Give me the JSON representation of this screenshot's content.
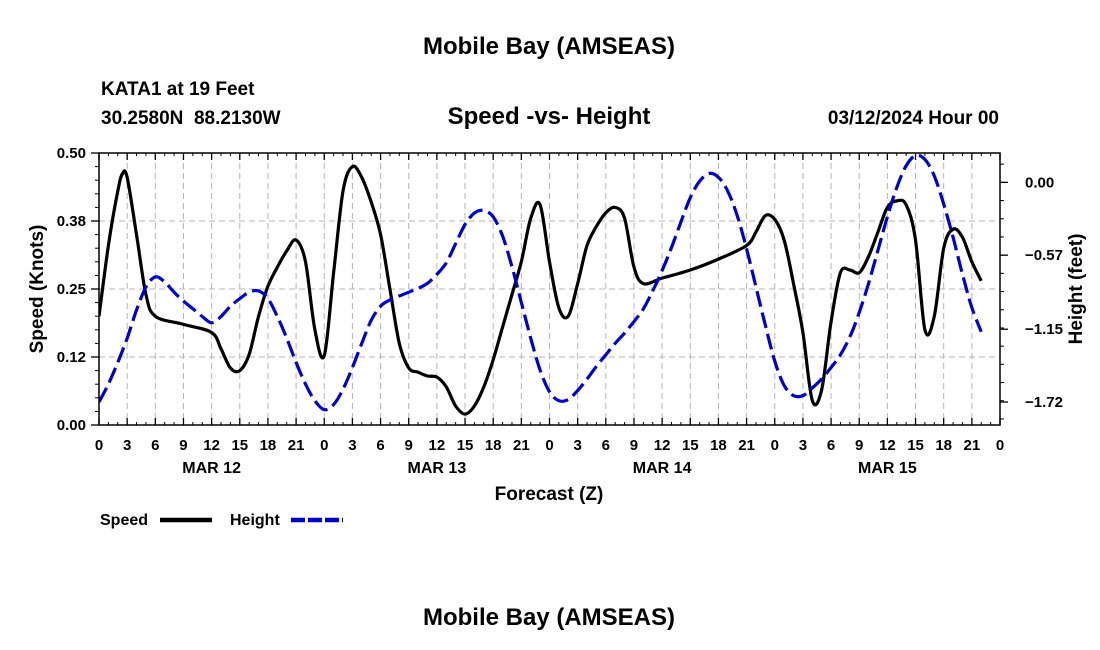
{
  "page": {
    "title": "Mobile Bay (AMSEAS)",
    "footer_title": "Mobile Bay (AMSEAS)",
    "station": "KATA1 at 19 Feet",
    "coords": "30.2580N  88.2130W",
    "timestamp": "03/12/2024 Hour 00"
  },
  "legend": {
    "speed_label": "Speed",
    "height_label": "Height"
  },
  "colors": {
    "speed": "#000000",
    "height": "#0000cc",
    "grid": "#b4b4b4"
  },
  "chart_data": {
    "type": "line",
    "title": "Speed -vs- Height",
    "xlabel": "Forecast (Z)",
    "ylabel": "Speed (Knots)",
    "y2label": "Height (feet)",
    "xlim": [
      0,
      96
    ],
    "ylim": [
      0,
      0.5
    ],
    "y2lim": [
      -1.9,
      0.23
    ],
    "grid": true,
    "legend_position": "bottom-left",
    "x_ticks": [
      0,
      3,
      6,
      9,
      12,
      15,
      18,
      21,
      24,
      27,
      30,
      33,
      36,
      39,
      42,
      45,
      48,
      51,
      54,
      57,
      60,
      63,
      66,
      69,
      72,
      75,
      78,
      81,
      84,
      87,
      90,
      93,
      96
    ],
    "x_tick_labels": [
      "0",
      "3",
      "6",
      "9",
      "12",
      "15",
      "18",
      "21",
      "0",
      "3",
      "6",
      "9",
      "12",
      "15",
      "18",
      "21",
      "0",
      "3",
      "6",
      "9",
      "12",
      "15",
      "18",
      "21",
      "0",
      "3",
      "6",
      "9",
      "12",
      "15",
      "18",
      "21",
      "0"
    ],
    "date_labels": [
      {
        "x": 12,
        "label": "MAR 12"
      },
      {
        "x": 36,
        "label": "MAR 13"
      },
      {
        "x": 60,
        "label": "MAR 14"
      },
      {
        "x": 84,
        "label": "MAR 15"
      }
    ],
    "y_ticks": [
      0,
      0.125,
      0.25,
      0.375,
      0.5
    ],
    "y_tick_labels": [
      "0.00",
      "0.12",
      "0.25",
      "0.38",
      "0.50"
    ],
    "y2_ticks": [
      0.0,
      -0.57,
      -1.15,
      -1.72
    ],
    "y2_tick_labels": [
      "0.00",
      "−0.57",
      "−1.15",
      "−1.72"
    ],
    "series": [
      {
        "name": "Speed",
        "axis": "left",
        "style": "solid",
        "points": [
          [
            0,
            0.2
          ],
          [
            1,
            0.33
          ],
          [
            2,
            0.43
          ],
          [
            2.5,
            0.462
          ],
          [
            3,
            0.455
          ],
          [
            4,
            0.35
          ],
          [
            5,
            0.24
          ],
          [
            6,
            0.2
          ],
          [
            9,
            0.185
          ],
          [
            12,
            0.17
          ],
          [
            13,
            0.14
          ],
          [
            14,
            0.105
          ],
          [
            15,
            0.1
          ],
          [
            16,
            0.13
          ],
          [
            17,
            0.2
          ],
          [
            18,
            0.255
          ],
          [
            19,
            0.29
          ],
          [
            20,
            0.32
          ],
          [
            21,
            0.34
          ],
          [
            22,
            0.3
          ],
          [
            23,
            0.175
          ],
          [
            24,
            0.128
          ],
          [
            25,
            0.28
          ],
          [
            26,
            0.43
          ],
          [
            27,
            0.475
          ],
          [
            28,
            0.455
          ],
          [
            29,
            0.41
          ],
          [
            30,
            0.35
          ],
          [
            31,
            0.25
          ],
          [
            32,
            0.15
          ],
          [
            33,
            0.105
          ],
          [
            34,
            0.097
          ],
          [
            35,
            0.09
          ],
          [
            36,
            0.088
          ],
          [
            37,
            0.07
          ],
          [
            38,
            0.035
          ],
          [
            39,
            0.02
          ],
          [
            40,
            0.035
          ],
          [
            41,
            0.07
          ],
          [
            42,
            0.12
          ],
          [
            43,
            0.18
          ],
          [
            44,
            0.24
          ],
          [
            45,
            0.3
          ],
          [
            46,
            0.38
          ],
          [
            47,
            0.405
          ],
          [
            48,
            0.3
          ],
          [
            49,
            0.215
          ],
          [
            50,
            0.2
          ],
          [
            51,
            0.26
          ],
          [
            52,
            0.33
          ],
          [
            53,
            0.365
          ],
          [
            54,
            0.39
          ],
          [
            55,
            0.4
          ],
          [
            56,
            0.38
          ],
          [
            57,
            0.29
          ],
          [
            58,
            0.26
          ],
          [
            60,
            0.27
          ],
          [
            63,
            0.285
          ],
          [
            66,
            0.305
          ],
          [
            69,
            0.33
          ],
          [
            70,
            0.355
          ],
          [
            71,
            0.385
          ],
          [
            72,
            0.378
          ],
          [
            73,
            0.34
          ],
          [
            74,
            0.26
          ],
          [
            75,
            0.17
          ],
          [
            76,
            0.045
          ],
          [
            77,
            0.065
          ],
          [
            78,
            0.19
          ],
          [
            79,
            0.28
          ],
          [
            80,
            0.285
          ],
          [
            81,
            0.28
          ],
          [
            82,
            0.31
          ],
          [
            83,
            0.355
          ],
          [
            84,
            0.4
          ],
          [
            85,
            0.412
          ],
          [
            86,
            0.405
          ],
          [
            87,
            0.34
          ],
          [
            88,
            0.175
          ],
          [
            89,
            0.2
          ],
          [
            90,
            0.325
          ],
          [
            91,
            0.36
          ],
          [
            92,
            0.345
          ],
          [
            93,
            0.3
          ],
          [
            94,
            0.265
          ]
        ]
      },
      {
        "name": "Height",
        "axis": "right",
        "style": "dashed",
        "points": [
          [
            0,
            -1.72
          ],
          [
            1,
            -1.58
          ],
          [
            2,
            -1.41
          ],
          [
            3,
            -1.22
          ],
          [
            4,
            -1.0
          ],
          [
            5,
            -0.82
          ],
          [
            6,
            -0.74
          ],
          [
            7,
            -0.78
          ],
          [
            8,
            -0.86
          ],
          [
            9,
            -0.93
          ],
          [
            10,
            -0.99
          ],
          [
            11,
            -1.05
          ],
          [
            12,
            -1.1
          ],
          [
            13,
            -1.05
          ],
          [
            14,
            -0.97
          ],
          [
            15,
            -0.91
          ],
          [
            16,
            -0.86
          ],
          [
            17,
            -0.85
          ],
          [
            18,
            -0.91
          ],
          [
            19,
            -1.05
          ],
          [
            20,
            -1.22
          ],
          [
            21,
            -1.41
          ],
          [
            22,
            -1.58
          ],
          [
            23,
            -1.71
          ],
          [
            24,
            -1.78
          ],
          [
            25,
            -1.74
          ],
          [
            26,
            -1.62
          ],
          [
            27,
            -1.45
          ],
          [
            28,
            -1.26
          ],
          [
            29,
            -1.08
          ],
          [
            30,
            -0.97
          ],
          [
            31,
            -0.92
          ],
          [
            32,
            -0.89
          ],
          [
            33,
            -0.86
          ],
          [
            34,
            -0.83
          ],
          [
            35,
            -0.79
          ],
          [
            36,
            -0.72
          ],
          [
            37,
            -0.63
          ],
          [
            38,
            -0.48
          ],
          [
            39,
            -0.33
          ],
          [
            40,
            -0.24
          ],
          [
            41,
            -0.22
          ],
          [
            42,
            -0.27
          ],
          [
            43,
            -0.42
          ],
          [
            44,
            -0.66
          ],
          [
            45,
            -0.94
          ],
          [
            46,
            -1.22
          ],
          [
            47,
            -1.47
          ],
          [
            48,
            -1.64
          ],
          [
            49,
            -1.71
          ],
          [
            50,
            -1.7
          ],
          [
            51,
            -1.63
          ],
          [
            52,
            -1.54
          ],
          [
            53,
            -1.44
          ],
          [
            54,
            -1.35
          ],
          [
            55,
            -1.26
          ],
          [
            56,
            -1.18
          ],
          [
            57,
            -1.09
          ],
          [
            58,
            -0.99
          ],
          [
            59,
            -0.85
          ],
          [
            60,
            -0.69
          ],
          [
            61,
            -0.51
          ],
          [
            62,
            -0.31
          ],
          [
            63,
            -0.12
          ],
          [
            64,
            0.01
          ],
          [
            65,
            0.07
          ],
          [
            66,
            0.04
          ],
          [
            67,
            -0.07
          ],
          [
            68,
            -0.26
          ],
          [
            69,
            -0.52
          ],
          [
            70,
            -0.82
          ],
          [
            71,
            -1.12
          ],
          [
            72,
            -1.4
          ],
          [
            73,
            -1.59
          ],
          [
            74,
            -1.67
          ],
          [
            75,
            -1.67
          ],
          [
            76,
            -1.61
          ],
          [
            77,
            -1.54
          ],
          [
            78,
            -1.45
          ],
          [
            79,
            -1.35
          ],
          [
            80,
            -1.21
          ],
          [
            81,
            -1.02
          ],
          [
            82,
            -0.79
          ],
          [
            83,
            -0.53
          ],
          [
            84,
            -0.27
          ],
          [
            85,
            -0.04
          ],
          [
            86,
            0.13
          ],
          [
            87,
            0.21
          ],
          [
            88,
            0.18
          ],
          [
            89,
            0.05
          ],
          [
            90,
            -0.17
          ],
          [
            91,
            -0.43
          ],
          [
            92,
            -0.72
          ],
          [
            93,
            -0.98
          ],
          [
            94,
            -1.17
          ]
        ]
      }
    ]
  }
}
